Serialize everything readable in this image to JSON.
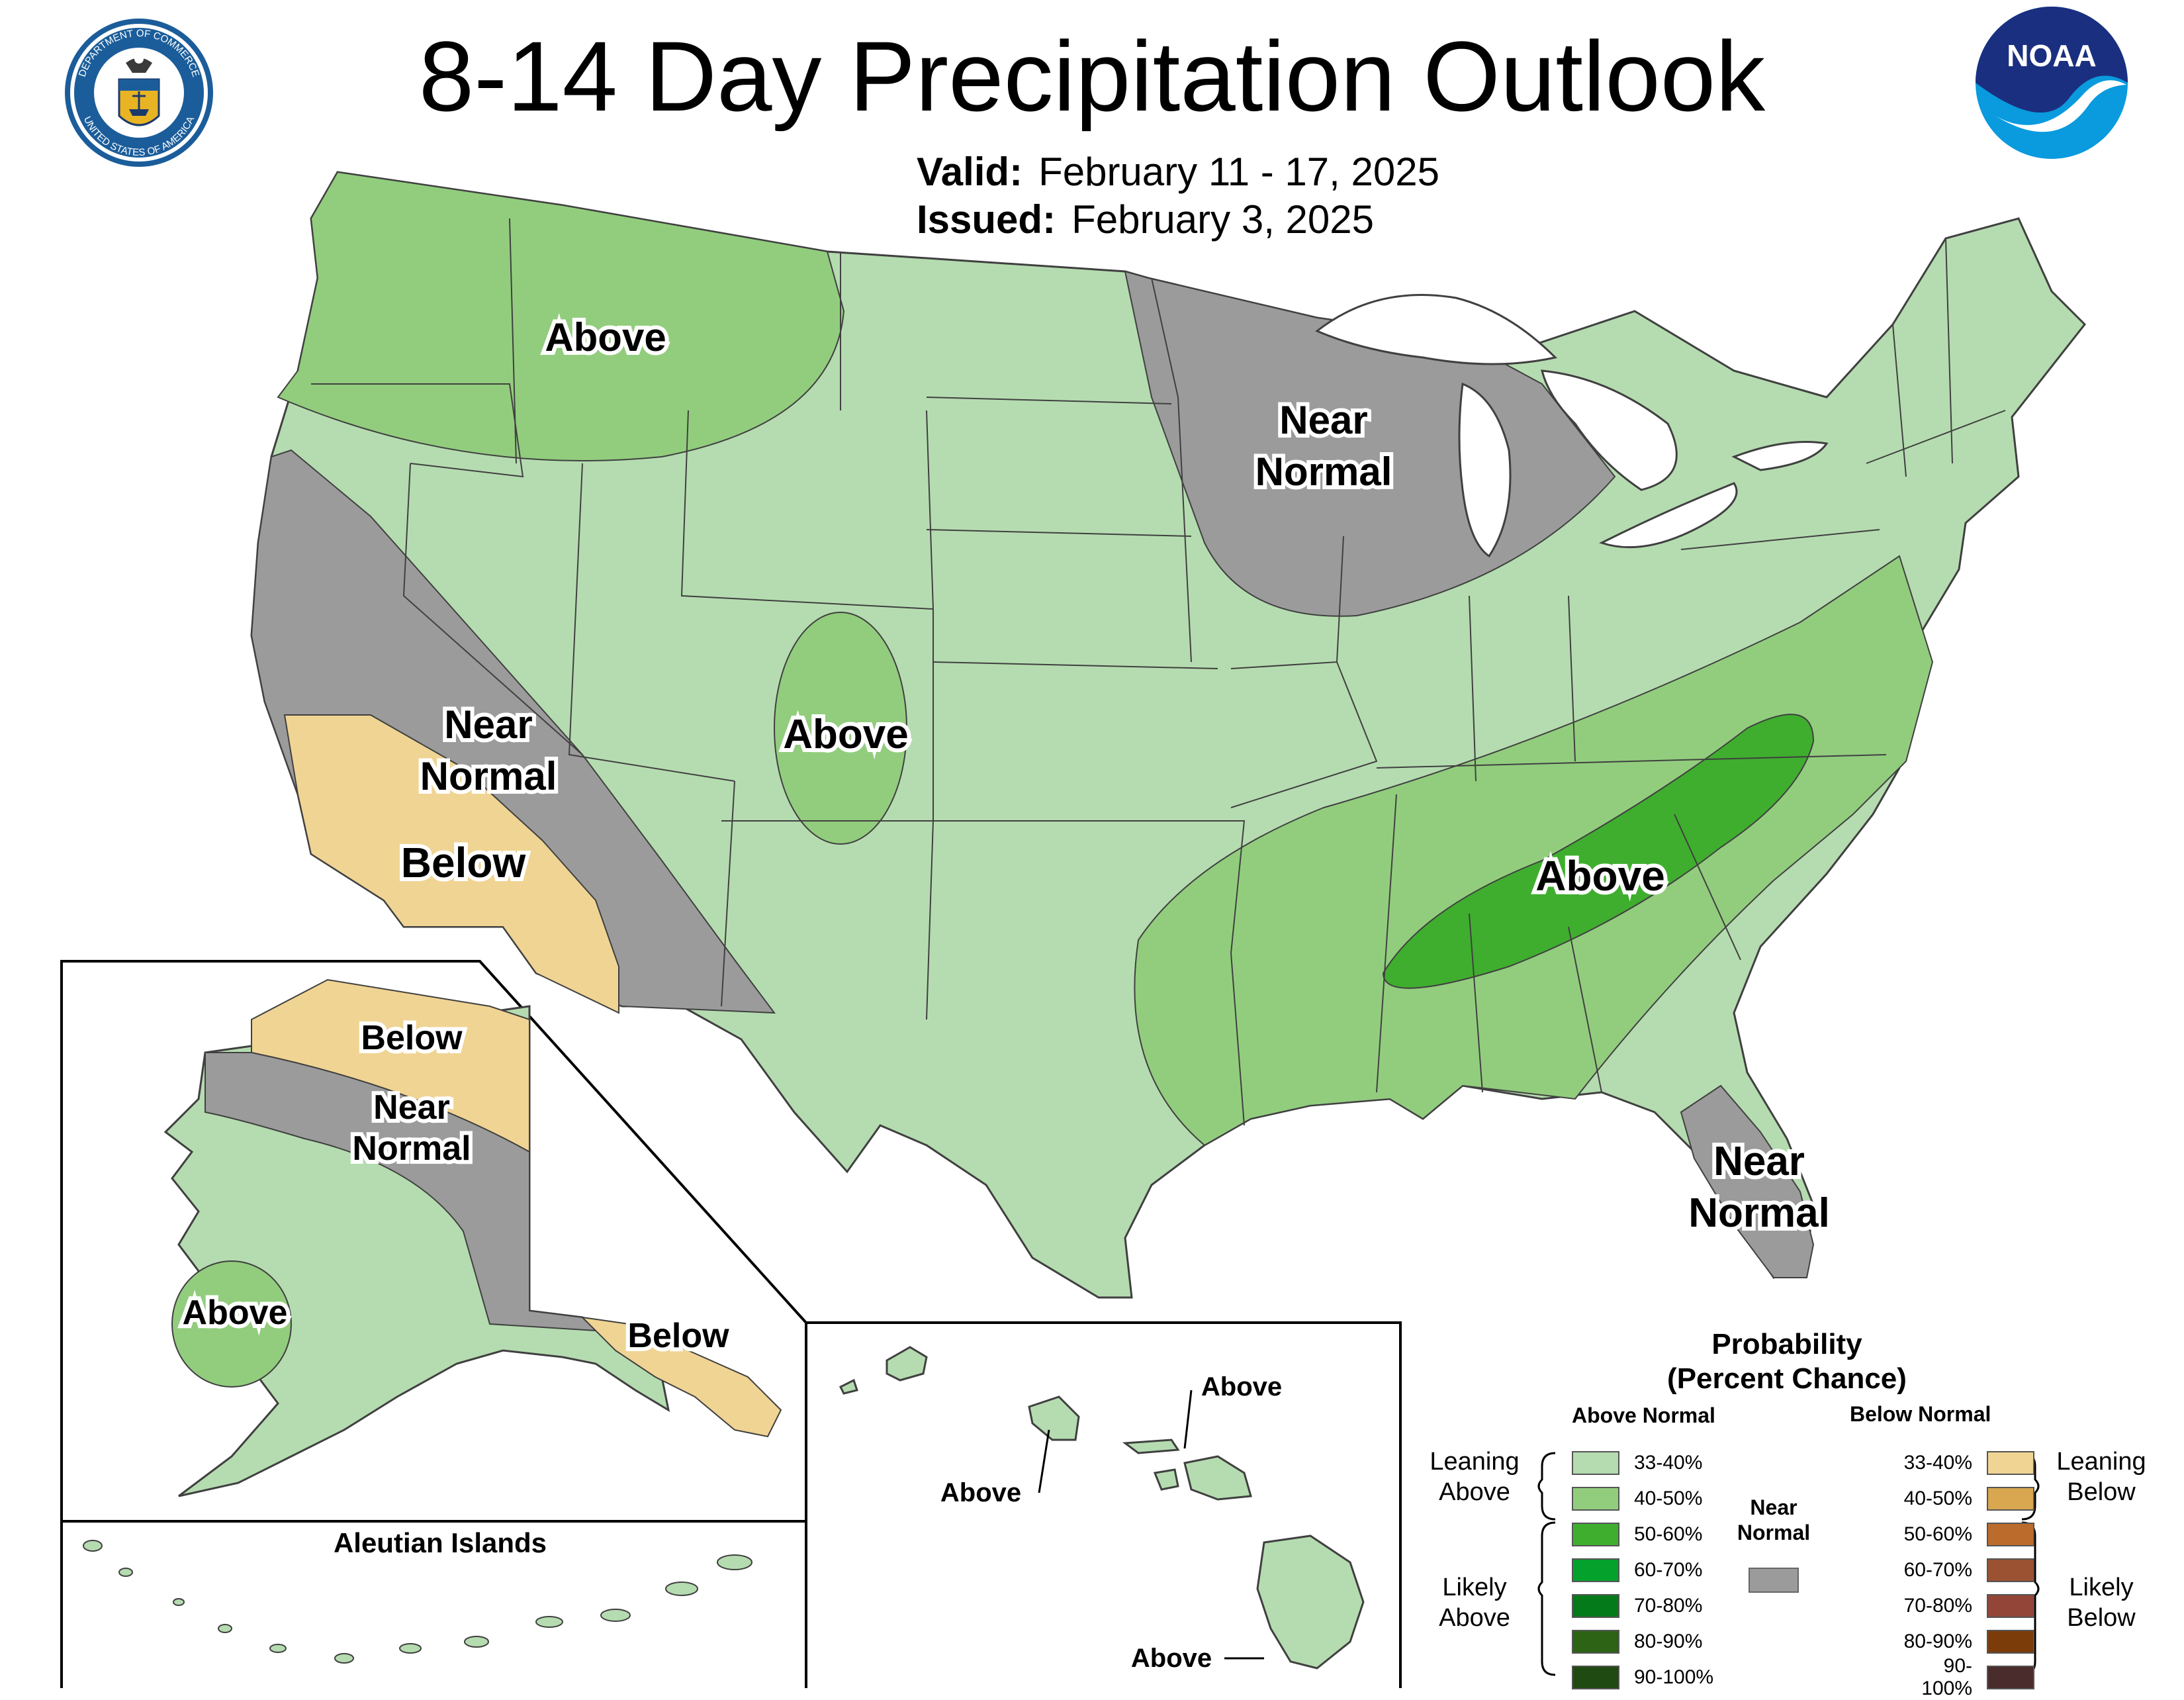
{
  "header": {
    "title": "8-14 Day Precipitation Outlook",
    "valid_label": "Valid:",
    "valid_value": "February 11 - 17, 2025",
    "issued_label": "Issued:",
    "issued_value": "February 3, 2025"
  },
  "logos": {
    "seal_text_top": "DEPARTMENT OF COMMERCE",
    "seal_text_bottom": "UNITED STATES OF AMERICA",
    "noaa_text": "NOAA"
  },
  "colors": {
    "leaning_above": "#b5dcb0",
    "above_40_50": "#92cd7e",
    "above_50_60": "#3fae2e",
    "above_60_70": "#04a12c",
    "above_70_80": "#057a1a",
    "above_80_90": "#2c6315",
    "above_90_100": "#1f4a11",
    "near_normal": "#9b9b9b",
    "leaning_below": "#f0d493",
    "below_40_50": "#d8a750",
    "below_50_60": "#bb6c2c",
    "below_60_70": "#9b5232",
    "below_70_80": "#934638",
    "below_80_90": "#7b3c0a",
    "below_90_100": "#4a2c2c",
    "outline": "#404040"
  },
  "conus_labels": {
    "nw_above": "Above",
    "north_central_near_1": "Near",
    "north_central_near_2": "Normal",
    "west_near_1": "Near",
    "west_near_2": "Normal",
    "ca_below": "Below",
    "rockies_above": "Above",
    "se_above": "Above",
    "fl_near_1": "Near",
    "fl_near_2": "Normal"
  },
  "alaska_labels": {
    "north_below": "Below",
    "near_1": "Near",
    "near_2": "Normal",
    "sw_above": "Above",
    "se_below": "Below",
    "aleutians_title": "Aleutian Islands"
  },
  "hawaii_labels": {
    "maui_above": "Above",
    "oahu_above": "Above",
    "big_island_above": "Above"
  },
  "legend": {
    "title_1": "Probability",
    "title_2": "(Percent Chance)",
    "above_head": "Above Normal",
    "below_head": "Below Normal",
    "above_rows": [
      "33-40%",
      "40-50%",
      "50-60%",
      "60-70%",
      "70-80%",
      "80-90%",
      "90-100%"
    ],
    "below_rows": [
      "33-40%",
      "40-50%",
      "50-60%",
      "60-70%",
      "70-80%",
      "80-90%",
      "90-100%"
    ],
    "leaning_above": [
      "Leaning",
      "Above"
    ],
    "likely_above": [
      "Likely",
      "Above"
    ],
    "leaning_below": [
      "Leaning",
      "Below"
    ],
    "likely_below": [
      "Likely",
      "Below"
    ],
    "near_normal": [
      "Near",
      "Normal"
    ]
  }
}
